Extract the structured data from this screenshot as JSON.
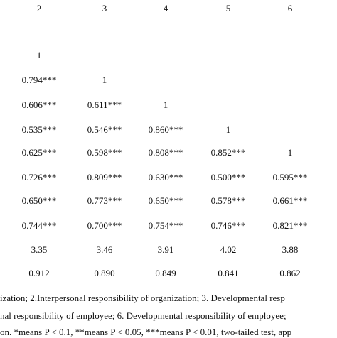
{
  "table": {
    "header": [
      "2",
      "3",
      "4",
      "5",
      "6"
    ],
    "rows": [
      [
        "1"
      ],
      [
        "0.794***",
        "1"
      ],
      [
        "0.606***",
        "0.611***",
        "1"
      ],
      [
        "0.535***",
        "0.546***",
        "0.860***",
        "1"
      ],
      [
        "0.625***",
        "0.598***",
        "0.808***",
        "0.852***",
        "1"
      ],
      [
        "0.726***",
        "0.809***",
        "0.630***",
        "0.500***",
        "0.595***"
      ],
      [
        "0.650***",
        "0.773***",
        "0.650***",
        "0.578***",
        "0.661***"
      ],
      [
        "0.744***",
        "0.700***",
        "0.754***",
        "0.746***",
        "0.821***"
      ],
      [
        "3.35",
        "3.46",
        "3.91",
        "4.02",
        "3.88"
      ],
      [
        "0.912",
        "0.890",
        "0.849",
        "0.841",
        "0.862"
      ]
    ]
  },
  "notes": [
    "ization; 2.Interpersonal responsibility of organization; 3. Developmental resp",
    "nal responsibility of employee; 6. Developmental responsibility of employee;",
    "on. *means P < 0.1, **means P < 0.05, ***means P < 0.01, two-tailed test, app"
  ]
}
